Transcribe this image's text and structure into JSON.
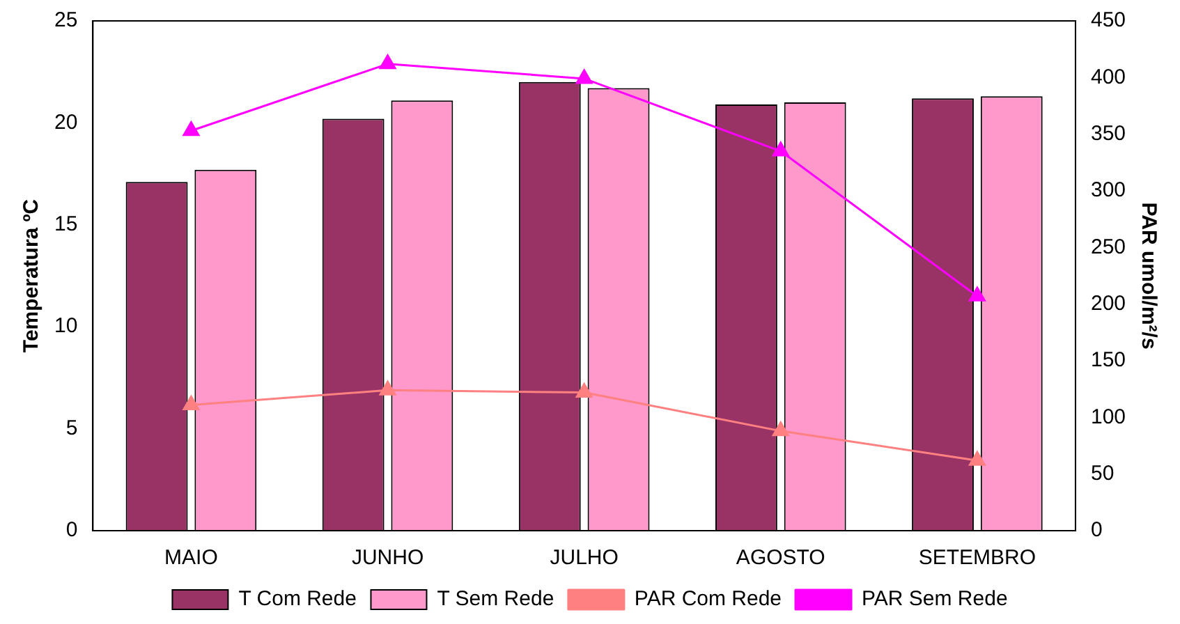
{
  "chart_data": {
    "type": "bar",
    "categories": [
      "MAIO",
      "JUNHO",
      "JULHO",
      "AGOSTO",
      "SETEMBRO"
    ],
    "ylabel": "Temperatura ºC",
    "y2label": "PAR umol/m²/s",
    "ylim": [
      0,
      25
    ],
    "yticks": [
      0,
      5,
      10,
      15,
      20,
      25
    ],
    "y2lim": [
      0,
      450
    ],
    "y2ticks": [
      0,
      50,
      100,
      150,
      200,
      250,
      300,
      350,
      400,
      450
    ],
    "series": [
      {
        "name": "T Com Rede",
        "color": "#993366",
        "values": [
          17.1,
          20.2,
          22.0,
          20.9,
          21.2
        ]
      },
      {
        "name": "T Sem Rede",
        "color": "#ff99cc",
        "values": [
          17.7,
          21.1,
          21.7,
          21.0,
          21.3
        ]
      },
      {
        "name": "PAR Com Rede",
        "type": "line",
        "axis": "y2",
        "color": "#ff8080",
        "values": [
          111,
          124,
          122,
          88,
          62
        ]
      },
      {
        "name": "PAR Sem Rede",
        "type": "line",
        "axis": "y2",
        "color": "#ff00ff",
        "values": [
          353,
          412,
          399,
          335,
          207
        ]
      }
    ],
    "marker": "triangle",
    "line_style": "solid",
    "grid": false,
    "legend": "bottom"
  }
}
